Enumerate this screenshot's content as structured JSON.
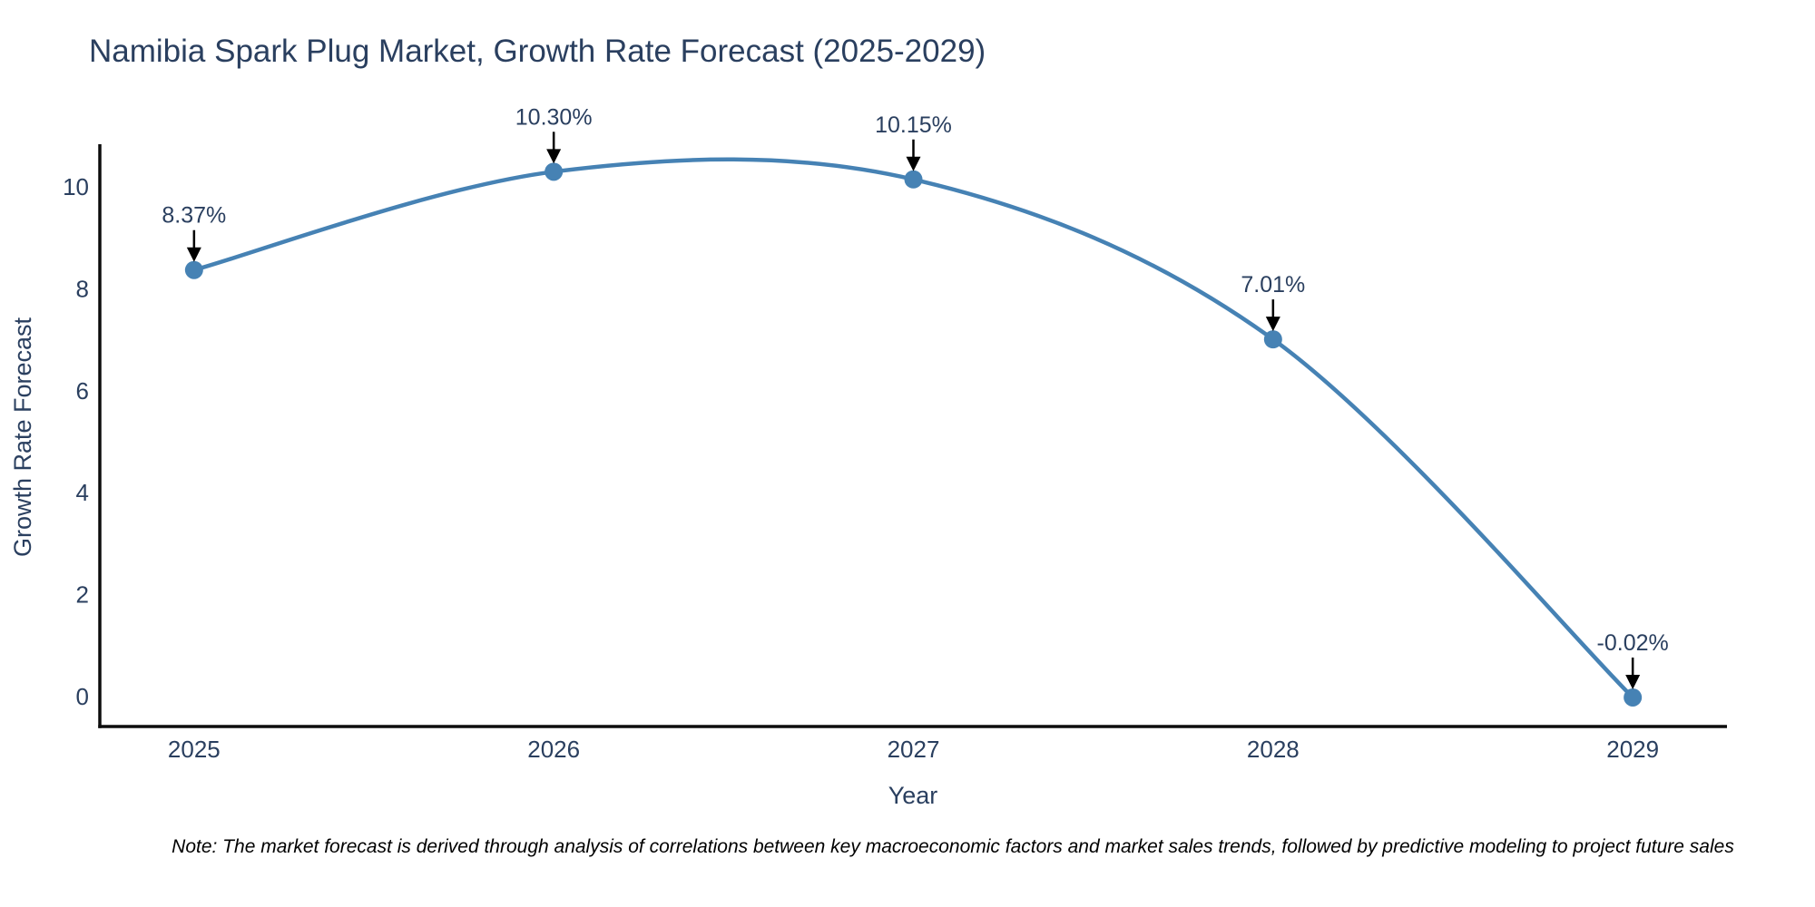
{
  "figure": {
    "title": "Namibia Spark Plug Market, Growth Rate Forecast (2025-2029)",
    "note": "Note: The market forecast is derived through analysis of correlations between key macroeconomic factors and market sales trends, followed by predictive modeling to project future sales"
  },
  "chart_data": {
    "type": "line",
    "title": "Namibia Spark Plug Market, Growth Rate Forecast (2025-2029)",
    "x": [
      2025,
      2026,
      2027,
      2028,
      2029
    ],
    "categories": [
      "2025",
      "2026",
      "2027",
      "2028",
      "2029"
    ],
    "values": [
      8.37,
      10.3,
      10.15,
      7.01,
      -0.02
    ],
    "annotations": [
      "8.37%",
      "10.30%",
      "10.15%",
      "7.01%",
      "-0.02%"
    ],
    "xlabel": "Year",
    "ylabel": "Growth Rate Forecast",
    "yticks": [
      0,
      2,
      4,
      6,
      8,
      10
    ],
    "ylim": [
      -0.59,
      10.84
    ],
    "xlim": [
      2024.738,
      2029.262
    ],
    "grid": false,
    "legend": "none",
    "line_shape": "spline",
    "marker_style": "circle",
    "colors": {
      "line": "#4682b4",
      "marker": "#4682b4",
      "axis": "#0d0d0d",
      "text": "#2a3f5f",
      "annotation_arrow": "#000000",
      "note": "#000000",
      "background": "#ffffff"
    }
  }
}
